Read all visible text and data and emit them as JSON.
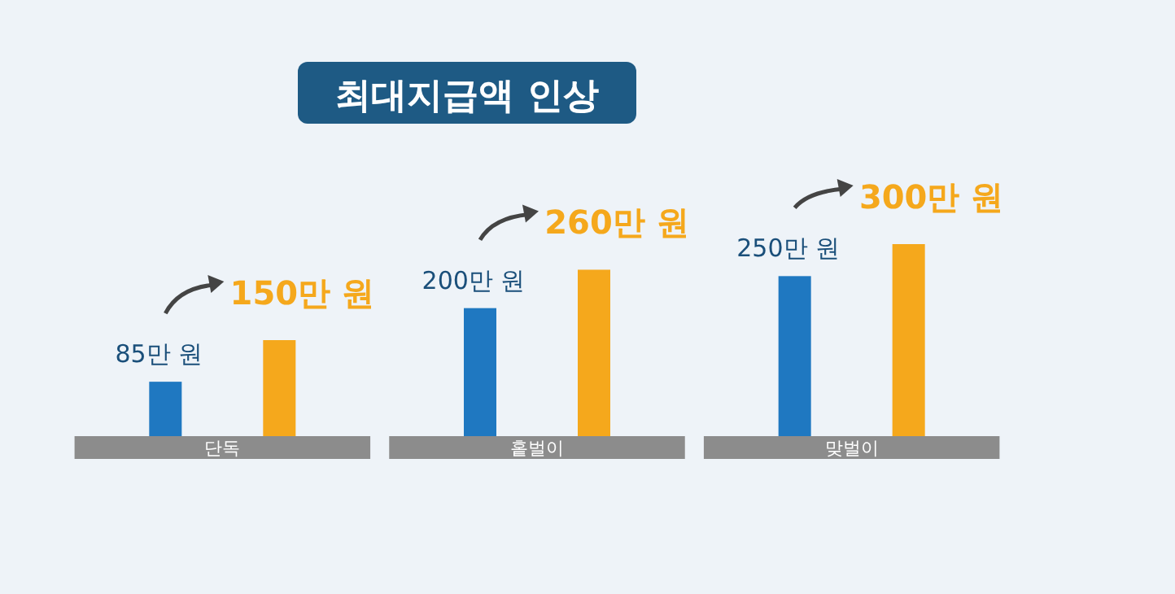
{
  "chart_data": {
    "type": "bar",
    "title": "최대지급액 인상",
    "categories": [
      "단독",
      "홑벌이",
      "맞벌이"
    ],
    "series": [
      {
        "color": "#1f78c1",
        "values": [
          85,
          200,
          250
        ],
        "value_labels": [
          "85만 원",
          "200만 원",
          "250만 원"
        ]
      },
      {
        "color": "#f5a81c",
        "values": [
          150,
          260,
          300
        ],
        "value_labels": [
          "150만 원",
          "260만 원",
          "300만 원"
        ]
      }
    ]
  }
}
